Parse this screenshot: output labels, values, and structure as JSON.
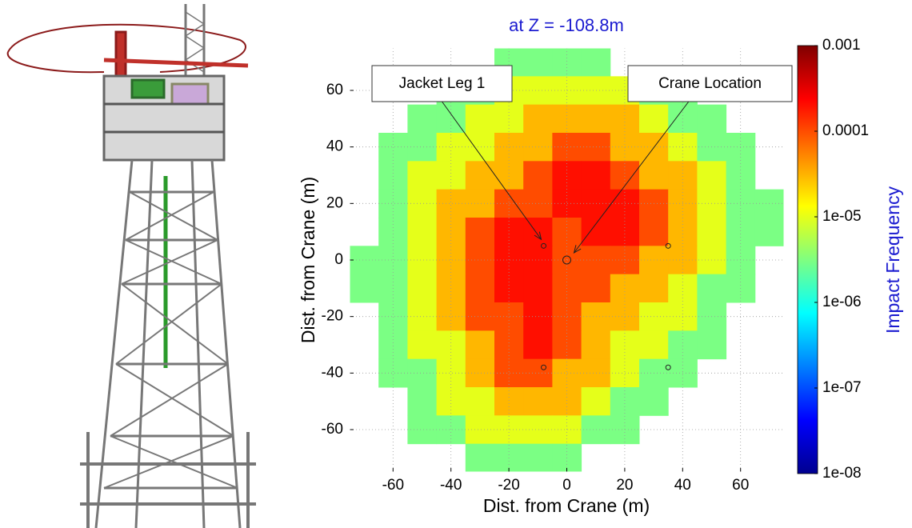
{
  "chart_data": {
    "type": "heatmap",
    "title": "at Z = -108.8m",
    "xlabel": "Dist. from Crane (m)",
    "ylabel": "Dist. from Crane (m)",
    "colorbar_label": "Impact Frequency",
    "colormap": "jet",
    "log_color": true,
    "grid": true,
    "xlim": [
      -75,
      75
    ],
    "ylim": [
      -75,
      75
    ],
    "xticks": [
      -60,
      -40,
      -20,
      0,
      20,
      40,
      60
    ],
    "yticks": [
      -60,
      -40,
      -20,
      0,
      20,
      40,
      60
    ],
    "clim": [
      1e-08,
      0.001
    ],
    "cticks": [
      {
        "value": 0.001,
        "label": "0.001"
      },
      {
        "value": 0.0001,
        "label": "0.0001"
      },
      {
        "value": 1e-05,
        "label": "1e-05"
      },
      {
        "value": 1e-06,
        "label": "1e-06"
      },
      {
        "value": 1e-07,
        "label": "1e-07"
      },
      {
        "value": 1e-08,
        "label": "1e-08"
      }
    ],
    "x": [
      -70,
      -60,
      -50,
      -40,
      -30,
      -20,
      -10,
      0,
      10,
      20,
      30,
      40,
      50,
      60,
      70
    ],
    "y": [
      70,
      60,
      50,
      40,
      30,
      20,
      10,
      0,
      -10,
      -20,
      -30,
      -40,
      -50,
      -60,
      -70
    ],
    "z": [
      [
        null,
        null,
        null,
        null,
        null,
        3e-06,
        3e-06,
        3e-06,
        3e-06,
        null,
        null,
        null,
        null,
        null,
        null
      ],
      [
        null,
        null,
        null,
        3e-06,
        3e-06,
        1e-05,
        1e-05,
        1e-05,
        1e-05,
        1e-05,
        3e-06,
        3e-06,
        null,
        null,
        null
      ],
      [
        null,
        null,
        3e-06,
        3e-06,
        1e-05,
        1e-05,
        3e-05,
        3e-05,
        3e-05,
        3e-05,
        1e-05,
        3e-06,
        3e-06,
        null,
        null
      ],
      [
        null,
        3e-06,
        3e-06,
        1e-05,
        1e-05,
        3e-05,
        3e-05,
        0.0001,
        0.0001,
        3e-05,
        3e-05,
        1e-05,
        3e-06,
        3e-06,
        null
      ],
      [
        null,
        3e-06,
        1e-05,
        1e-05,
        3e-05,
        3e-05,
        0.0001,
        0.0002,
        0.0002,
        0.0001,
        3e-05,
        3e-05,
        1e-05,
        3e-06,
        null
      ],
      [
        null,
        3e-06,
        1e-05,
        3e-05,
        3e-05,
        0.0001,
        0.0001,
        0.0002,
        0.0002,
        0.0002,
        0.0001,
        3e-05,
        1e-05,
        3e-06,
        3e-06
      ],
      [
        null,
        3e-06,
        1e-05,
        3e-05,
        0.0001,
        0.0002,
        0.0002,
        0.0001,
        0.0002,
        0.0002,
        0.0001,
        3e-05,
        1e-05,
        3e-06,
        3e-06
      ],
      [
        3e-06,
        3e-06,
        1e-05,
        3e-05,
        0.0001,
        0.0002,
        0.0002,
        0.0001,
        0.0001,
        0.0001,
        3e-05,
        3e-05,
        1e-05,
        3e-06,
        null
      ],
      [
        3e-06,
        3e-06,
        1e-05,
        3e-05,
        0.0001,
        0.0002,
        0.0002,
        0.0001,
        0.0001,
        3e-05,
        3e-05,
        1e-05,
        3e-06,
        3e-06,
        null
      ],
      [
        null,
        3e-06,
        1e-05,
        3e-05,
        0.0001,
        0.0001,
        0.0002,
        0.0001,
        3e-05,
        3e-05,
        1e-05,
        1e-05,
        3e-06,
        null,
        null
      ],
      [
        null,
        3e-06,
        1e-05,
        1e-05,
        3e-05,
        0.0001,
        0.0002,
        0.0001,
        3e-05,
        1e-05,
        1e-05,
        3e-06,
        3e-06,
        null,
        null
      ],
      [
        null,
        3e-06,
        3e-06,
        1e-05,
        3e-05,
        0.0001,
        0.0001,
        3e-05,
        3e-05,
        1e-05,
        3e-06,
        3e-06,
        null,
        null,
        null
      ],
      [
        null,
        null,
        3e-06,
        1e-05,
        1e-05,
        3e-05,
        3e-05,
        3e-05,
        1e-05,
        3e-06,
        3e-06,
        null,
        null,
        null,
        null
      ],
      [
        null,
        null,
        3e-06,
        3e-06,
        1e-05,
        1e-05,
        1e-05,
        1e-05,
        3e-06,
        3e-06,
        null,
        null,
        null,
        null,
        null
      ],
      [
        null,
        null,
        null,
        null,
        3e-06,
        3e-06,
        3e-06,
        3e-06,
        null,
        null,
        null,
        null,
        null,
        null,
        null
      ]
    ],
    "points": {
      "x": [
        -8,
        35,
        -8,
        35,
        0
      ],
      "y": [
        5,
        5,
        -38,
        -38,
        0
      ]
    },
    "annotations": [
      "Jacket Leg 1",
      "Crane Location"
    ]
  }
}
